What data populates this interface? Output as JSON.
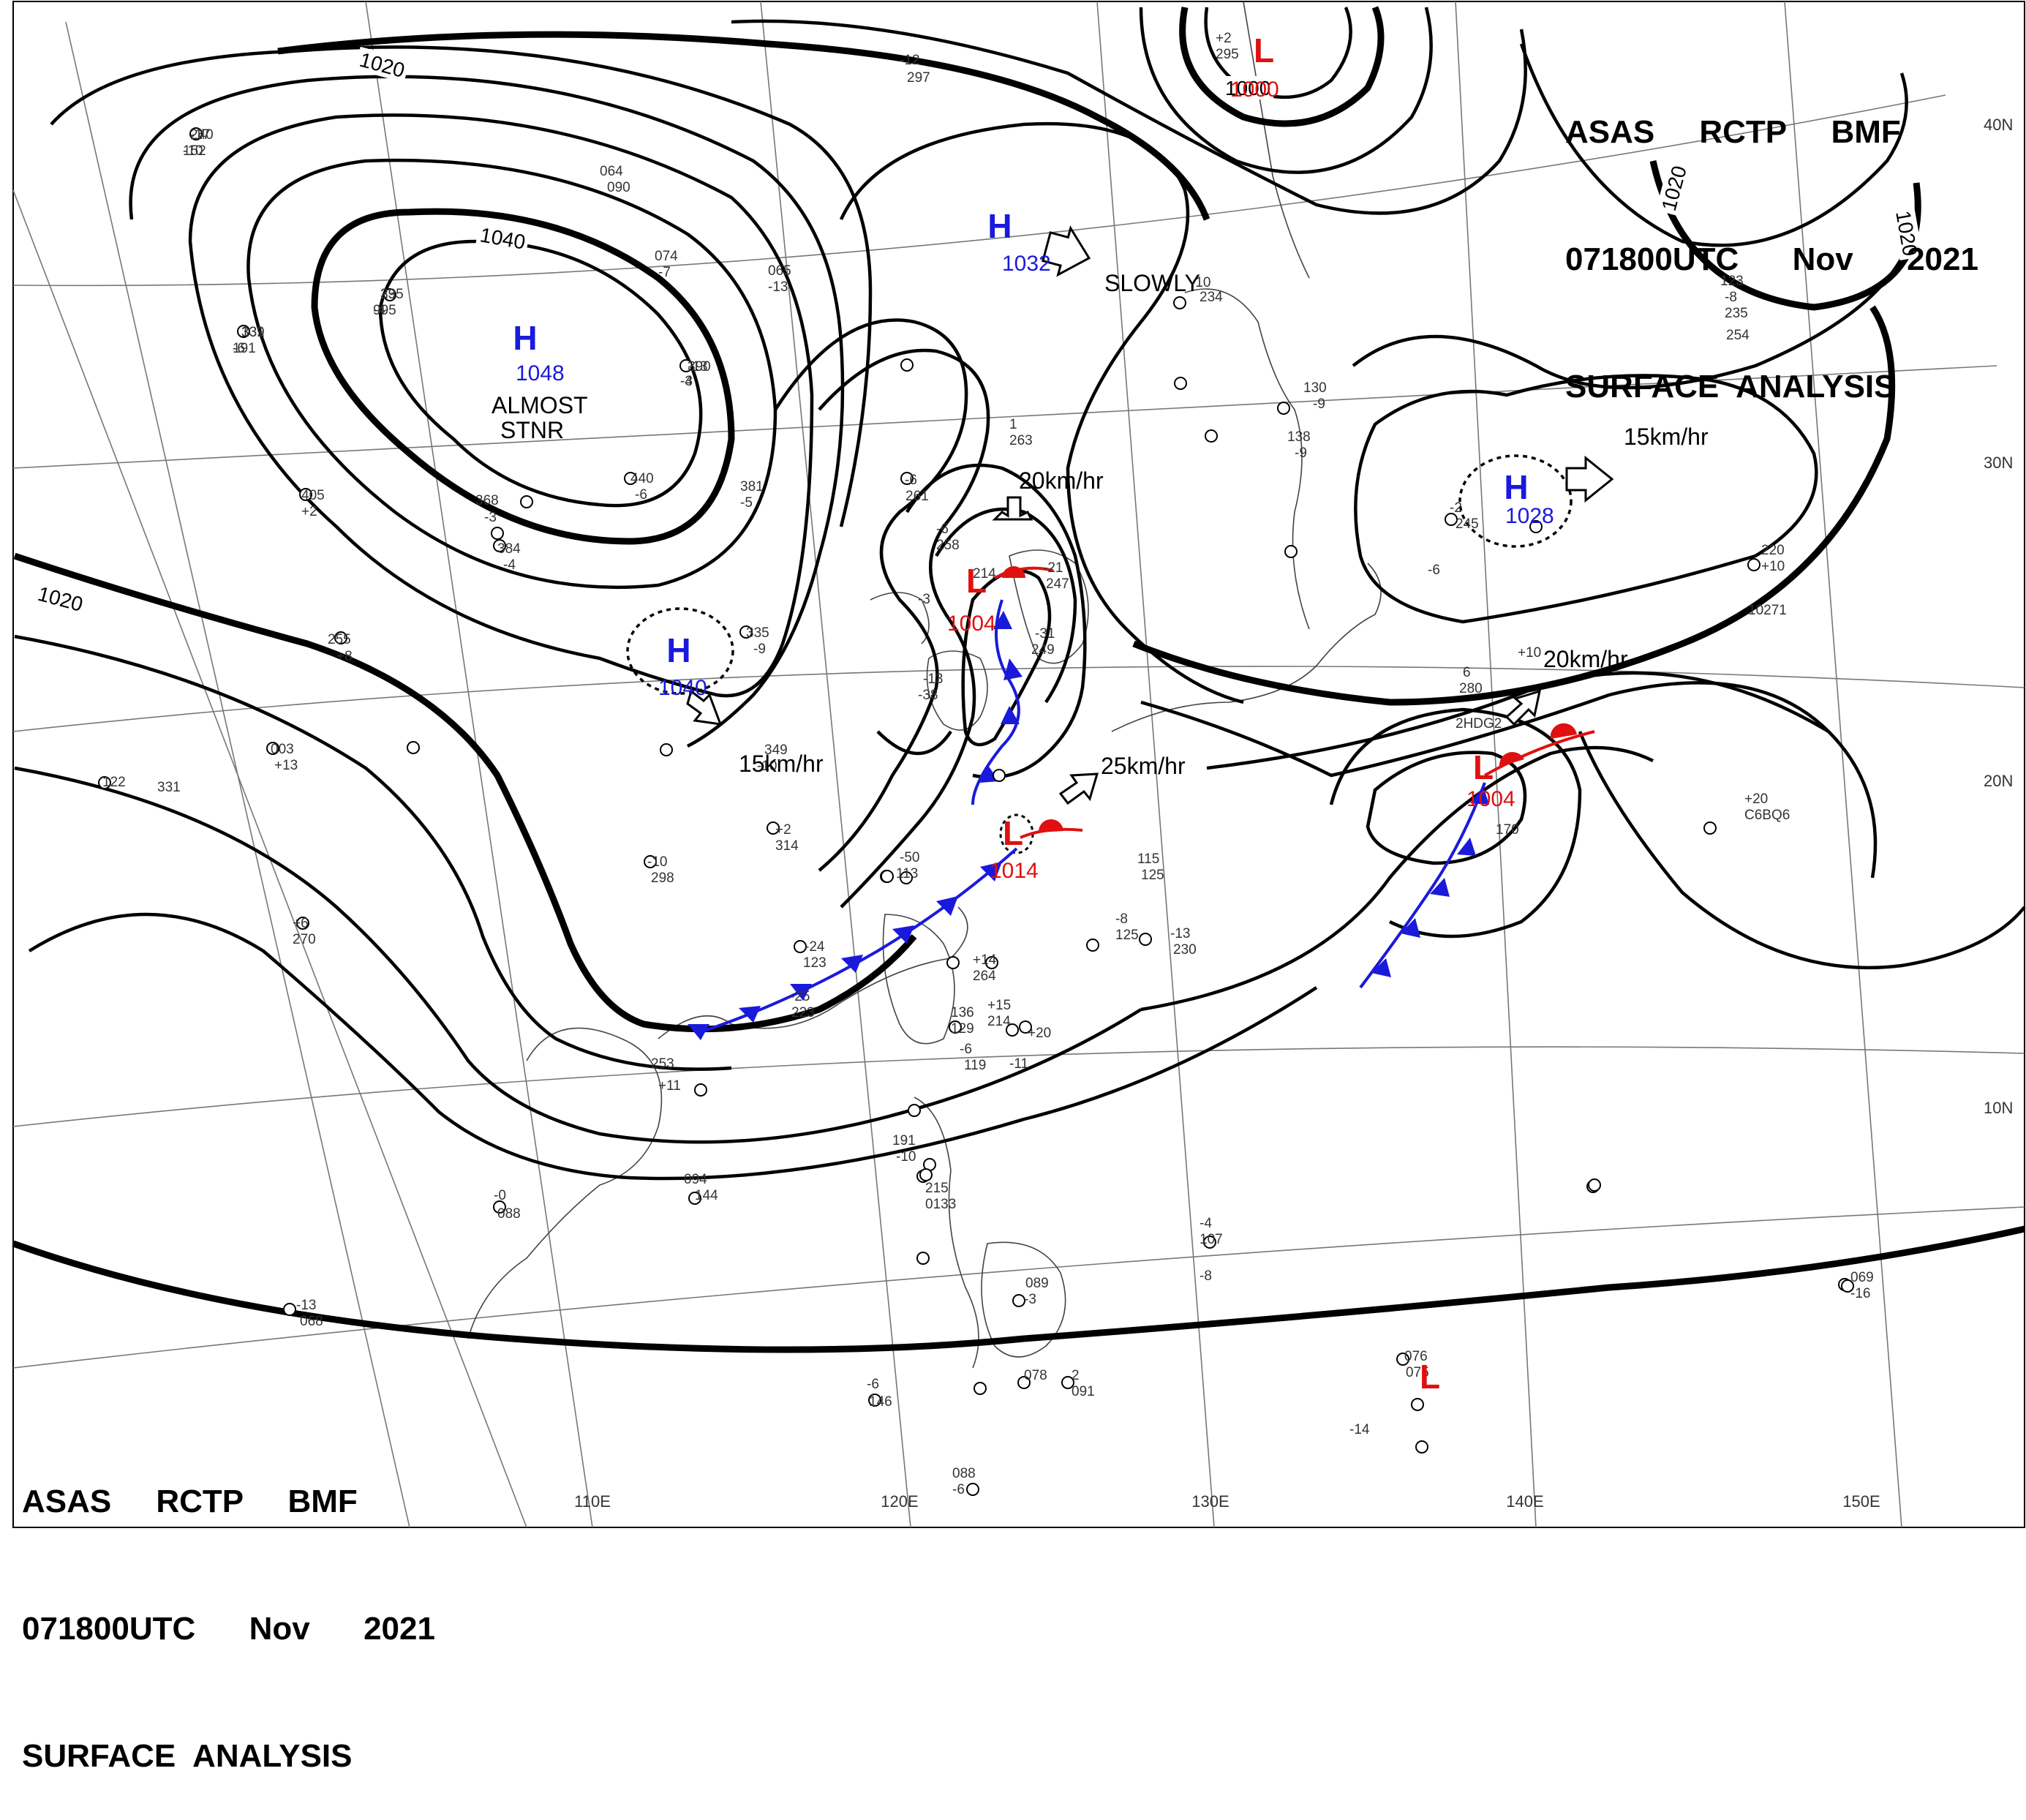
{
  "header_top": {
    "line1": "ASAS     RCTP     BMF",
    "line2": "071800UTC      Nov      2021",
    "line3": "SURFACE  ANALYSIS"
  },
  "header_bottom": {
    "line1": "ASAS     RCTP     BMF",
    "line2": "071800UTC      Nov      2021",
    "line3": "SURFACE  ANALYSIS"
  },
  "colors": {
    "high": "#1a1adb",
    "low": "#e01010",
    "cold_front": "#1a1adb",
    "warm_front": "#e01010",
    "isobar": "#000000",
    "grid": "#777777"
  },
  "longitude_labels": [
    "110E",
    "120E",
    "130E",
    "140E",
    "150E"
  ],
  "latitude_labels": [
    "40N",
    "30N",
    "20N",
    "10N"
  ],
  "isobar_labels": [
    "1020",
    "1040",
    "1020",
    "1000",
    "1020",
    "1020"
  ],
  "pressure_centers": [
    {
      "type": "H",
      "value": "1048",
      "note": "ALMOST\nSTNR"
    },
    {
      "type": "H",
      "value": "1032",
      "note": "SLOWLY"
    },
    {
      "type": "H",
      "value": "1040",
      "note": "15km/hr"
    },
    {
      "type": "H",
      "value": "1028",
      "note": "15km/hr"
    },
    {
      "type": "L",
      "value": "1004",
      "note": "20km/hr"
    },
    {
      "type": "L",
      "value": "1014",
      "note": "25km/hr"
    },
    {
      "type": "L",
      "value": "1004",
      "note": "20km/hr"
    },
    {
      "type": "L",
      "value": "1000",
      "note": ""
    },
    {
      "type": "L",
      "value": "",
      "note": ""
    }
  ],
  "station_texts": [
    "240",
    "-10",
    "395",
    "-4",
    "339",
    "-6",
    "390",
    "-3",
    "440",
    "-6",
    "405",
    "+2",
    "368",
    "-3",
    "381",
    "-5",
    "384",
    "-4",
    "255",
    "+8",
    "335",
    "-9",
    "349",
    "-10",
    "003",
    "+13",
    "122",
    "331",
    "+2",
    "314",
    "-10",
    "298",
    "+6",
    "270",
    "-6",
    "261",
    "1",
    "263",
    "-6",
    "258",
    "-3",
    "214",
    "-31",
    "249",
    "-21",
    "247",
    "-13",
    "-38",
    "-50",
    "113",
    "-24",
    "123",
    "-25",
    "223",
    "+11",
    "253",
    "+14",
    "264",
    "+15",
    "214",
    "+20",
    "136",
    "129",
    "-6",
    "119",
    "-11",
    "115",
    "125",
    "-8",
    "125",
    "-13",
    "230",
    "138",
    "-9",
    "130",
    "-9",
    "123",
    "-8",
    "235",
    "254",
    "-2",
    "245",
    "-6",
    "220",
    "+10",
    "10271",
    "6",
    "280",
    "+10",
    "2HDG2",
    "170",
    "+20",
    "C6BQ6",
    "191",
    "-10",
    "215",
    "0133",
    "094",
    "144",
    "-0",
    "088",
    "-13",
    "068",
    "-4",
    "107",
    "-8",
    "089",
    "-3",
    "078",
    "2",
    "091",
    "-6",
    "146",
    "088",
    "-6",
    "076",
    "075",
    "-14",
    "069",
    "-16",
    "065",
    "-13",
    "074",
    "-7",
    "064",
    "090",
    "-12",
    "297",
    "+2",
    "295",
    "-10",
    "234",
    "-17",
    "152",
    "23",
    "995",
    "131",
    "191",
    "-13",
    "-4"
  ]
}
